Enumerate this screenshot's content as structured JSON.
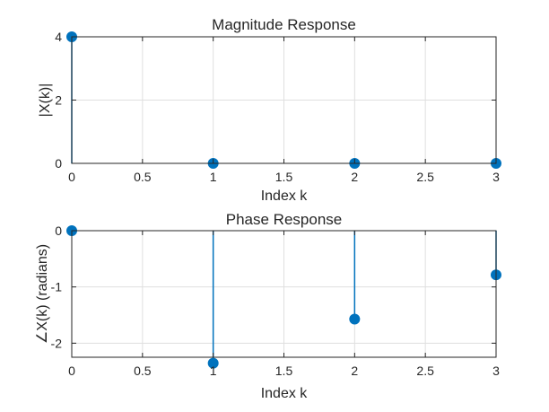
{
  "chart_data": [
    {
      "type": "stem",
      "title": "Magnitude Response",
      "xlabel": "Index k",
      "ylabel": "|X(k)|",
      "x": [
        0,
        1,
        2,
        3
      ],
      "y": [
        4,
        0,
        0,
        0
      ],
      "xlim": [
        0,
        3
      ],
      "ylim": [
        0,
        4
      ],
      "xticks": [
        0,
        0.5,
        1,
        1.5,
        2,
        2.5,
        3
      ],
      "xtick_labels": [
        "0",
        "0.5",
        "1",
        "1.5",
        "2",
        "2.5",
        "3"
      ],
      "yticks": [
        0,
        2,
        4
      ],
      "ytick_labels": [
        "0",
        "2",
        "4"
      ],
      "grid": true,
      "color": "#0072BD"
    },
    {
      "type": "stem",
      "title": "Phase Response",
      "xlabel": "Index k",
      "ylabel": "∠X(k) (radians)",
      "x": [
        0,
        1,
        2,
        3
      ],
      "y": [
        0,
        -2.356,
        -1.571,
        -0.785
      ],
      "xlim": [
        0,
        3
      ],
      "ylim": [
        -2.25,
        0
      ],
      "xticks": [
        0,
        0.5,
        1,
        1.5,
        2,
        2.5,
        3
      ],
      "xtick_labels": [
        "0",
        "0.5",
        "1",
        "1.5",
        "2",
        "2.5",
        "3"
      ],
      "yticks": [
        -2,
        -1,
        0
      ],
      "ytick_labels": [
        "-2",
        "-1",
        "0"
      ],
      "grid": true,
      "color": "#0072BD"
    }
  ]
}
